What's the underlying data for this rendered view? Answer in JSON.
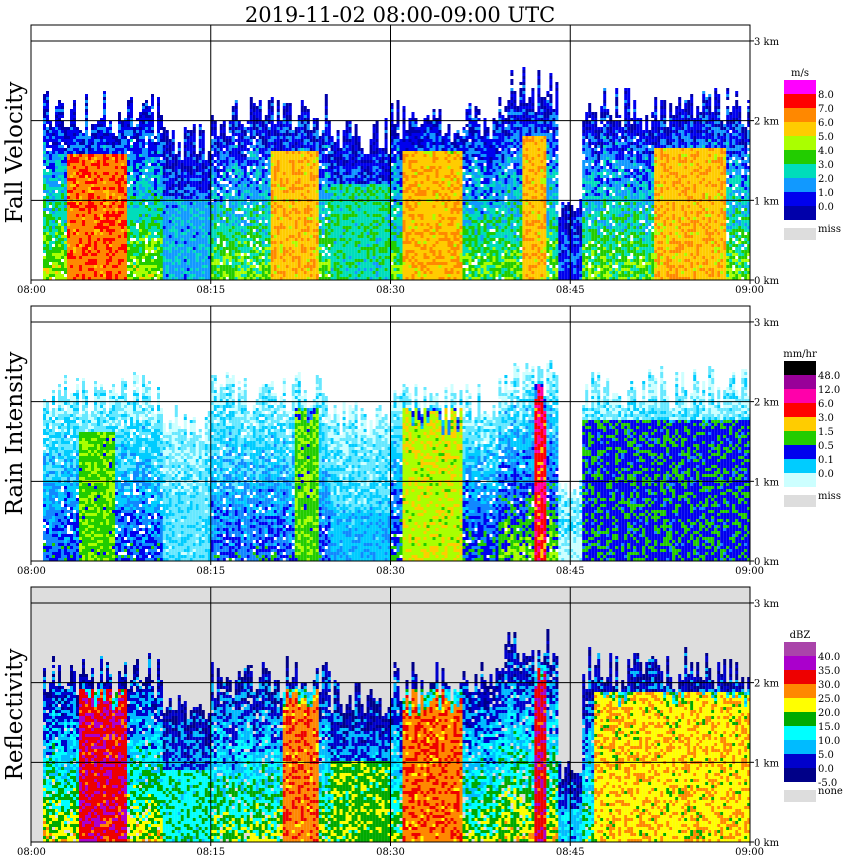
{
  "figure": {
    "title": "2019-11-02   08:00-09:00 UTC"
  },
  "chart_data": [
    {
      "type": "heatmap",
      "title": "Fall Velocity",
      "x_ticks": [
        "08:00",
        "08:15",
        "08:30",
        "08:45",
        "09:00"
      ],
      "y_ticks": [
        "0 km",
        "1 km",
        "2 km",
        "3 km"
      ],
      "xlim": [
        "08:00",
        "09:00"
      ],
      "ylim_km": [
        0,
        3.2
      ],
      "grid": true,
      "legend": {
        "unit": "m/s",
        "levels": [
          "8.0",
          "7.0",
          "6.0",
          "5.0",
          "4.0",
          "3.0",
          "2.0",
          "1.0",
          "0.0"
        ],
        "colors": [
          "#ff00ff",
          "#ff0000",
          "#ff8800",
          "#ffcc00",
          "#aaff00",
          "#22cc00",
          "#00ddbb",
          "#1199ff",
          "#0000ee",
          "#0000aa"
        ],
        "missing_label": "miss",
        "missing_color": "#dddddd"
      },
      "fill_ramp": [
        "#0000aa",
        "#0000ee",
        "#1199ff",
        "#00ddbb",
        "#22cc00",
        "#aaff00",
        "#ffcc00",
        "#ff8800",
        "#ff0000",
        "#ff0088"
      ],
      "background": "#ffffff",
      "echo_columns": [
        {
          "start": "08:01",
          "end": "08:11",
          "top_km": 2.3,
          "core_top_km": 1.55,
          "core_value": 8,
          "core_start": "08:03",
          "core_end": "08:08"
        },
        {
          "start": "08:11",
          "end": "08:15",
          "top_km": 1.9,
          "core_top_km": 1.0,
          "core_value": 3
        },
        {
          "start": "08:15",
          "end": "08:25",
          "top_km": 2.3,
          "core_top_km": 1.6,
          "core_value": 7,
          "core_start": "08:20",
          "core_end": "08:24"
        },
        {
          "start": "08:25",
          "end": "08:30",
          "top_km": 2.0,
          "core_top_km": 1.2,
          "core_value": 4
        },
        {
          "start": "08:30",
          "end": "08:39",
          "top_km": 2.2,
          "core_top_km": 1.6,
          "core_value": 7,
          "core_start": "08:31",
          "core_end": "08:36"
        },
        {
          "start": "08:39",
          "end": "08:44",
          "top_km": 2.6,
          "core_top_km": 1.8,
          "core_value": 7,
          "core_start": "08:41",
          "core_end": "08:43"
        },
        {
          "start": "08:44",
          "end": "08:46",
          "top_km": 1.0,
          "core_top_km": 0.5,
          "core_value": 2
        },
        {
          "start": "08:46",
          "end": "09:00",
          "top_km": 2.4,
          "core_top_km": 1.65,
          "core_value": 7,
          "core_start": "08:52",
          "core_end": "08:58"
        }
      ]
    },
    {
      "type": "heatmap",
      "title": "Rain Intensity",
      "x_ticks": [
        "08:00",
        "08:15",
        "08:30",
        "08:45",
        "09:00"
      ],
      "y_ticks": [
        "0 km",
        "1 km",
        "2 km",
        "3 km"
      ],
      "xlim": [
        "08:00",
        "09:00"
      ],
      "ylim_km": [
        0,
        3.2
      ],
      "grid": true,
      "legend": {
        "unit": "mm/hr",
        "levels": [
          "48.0",
          "12.0",
          "6.0",
          "3.0",
          "1.5",
          "0.5",
          "0.1",
          "0.0"
        ],
        "colors": [
          "#000000",
          "#990099",
          "#ff00aa",
          "#ff0000",
          "#ffcc00",
          "#22cc00",
          "#0000ee",
          "#00ccff",
          "#ccffff"
        ],
        "missing_label": "miss",
        "missing_color": "#dddddd"
      },
      "fill_ramp": [
        "#ccffff",
        "#66e8ff",
        "#00ccff",
        "#1188ff",
        "#0000ee",
        "#22cc00",
        "#aaff00",
        "#ffcc00",
        "#ff0000",
        "#ff00aa"
      ],
      "background": "#ffffff",
      "echo_columns": [
        {
          "start": "08:01",
          "end": "08:11",
          "top_km": 2.3,
          "core_top_km": 1.6,
          "core_value": 6,
          "core_start": "08:04",
          "core_end": "08:07"
        },
        {
          "start": "08:11",
          "end": "08:15",
          "top_km": 1.9,
          "core_top_km": 0.8,
          "core_value": 2
        },
        {
          "start": "08:15",
          "end": "08:25",
          "top_km": 2.3,
          "core_top_km": 1.9,
          "core_value": 6,
          "core_start": "08:22",
          "core_end": "08:24"
        },
        {
          "start": "08:25",
          "end": "08:30",
          "top_km": 2.0,
          "core_top_km": 0.6,
          "core_value": 3
        },
        {
          "start": "08:30",
          "end": "08:39",
          "top_km": 2.2,
          "core_top_km": 1.9,
          "core_value": 7,
          "core_start": "08:31",
          "core_end": "08:36"
        },
        {
          "start": "08:39",
          "end": "08:44",
          "top_km": 2.6,
          "core_top_km": 2.2,
          "core_value": 9,
          "core_start": "08:42",
          "core_end": "08:43"
        },
        {
          "start": "08:44",
          "end": "08:46",
          "top_km": 1.0,
          "core_top_km": 0.3,
          "core_value": 1
        },
        {
          "start": "08:46",
          "end": "09:00",
          "top_km": 2.4,
          "core_top_km": 1.75,
          "core_value": 5,
          "core_start": "08:46",
          "core_end": "09:00"
        }
      ]
    },
    {
      "type": "heatmap",
      "title": "Reflectivity",
      "x_ticks": [
        "08:00",
        "08:15",
        "08:30",
        "08:45",
        "09:00"
      ],
      "y_ticks": [
        "0 km",
        "1 km",
        "2 km",
        "3 km"
      ],
      "xlim": [
        "08:00",
        "09:00"
      ],
      "ylim_km": [
        0,
        3.2
      ],
      "grid": true,
      "legend": {
        "unit": "dBZ",
        "levels": [
          "40.0",
          "35.0",
          "30.0",
          "25.0",
          "20.0",
          "15.0",
          "10.0",
          "5.0",
          "0.0",
          "-5.0"
        ],
        "colors": [
          "#aa44aa",
          "#aa00cc",
          "#ee0000",
          "#ff8800",
          "#ffff00",
          "#00aa00",
          "#00ffff",
          "#00bbff",
          "#0000cc",
          "#000088"
        ],
        "missing_label": "none",
        "missing_color": "#dddddd"
      },
      "fill_ramp": [
        "#000088",
        "#0000cc",
        "#00bbff",
        "#00ffff",
        "#00aa00",
        "#ffff00",
        "#ff8800",
        "#ee0000",
        "#aa00cc",
        "#aa44aa"
      ],
      "background": "#dddddd",
      "echo_columns": [
        {
          "start": "08:01",
          "end": "08:11",
          "top_km": 2.3,
          "core_top_km": 1.9,
          "core_value": 8,
          "core_start": "08:04",
          "core_end": "08:08"
        },
        {
          "start": "08:11",
          "end": "08:15",
          "top_km": 1.9,
          "core_top_km": 0.9,
          "core_value": 4
        },
        {
          "start": "08:15",
          "end": "08:25",
          "top_km": 2.3,
          "core_top_km": 1.9,
          "core_value": 7,
          "core_start": "08:21",
          "core_end": "08:24"
        },
        {
          "start": "08:25",
          "end": "08:30",
          "top_km": 2.0,
          "core_top_km": 1.0,
          "core_value": 5
        },
        {
          "start": "08:30",
          "end": "08:39",
          "top_km": 2.2,
          "core_top_km": 1.9,
          "core_value": 7,
          "core_start": "08:31",
          "core_end": "08:36"
        },
        {
          "start": "08:39",
          "end": "08:44",
          "top_km": 2.6,
          "core_top_km": 2.2,
          "core_value": 8,
          "core_start": "08:42",
          "core_end": "08:43"
        },
        {
          "start": "08:44",
          "end": "08:46",
          "top_km": 1.0,
          "core_top_km": 0.4,
          "core_value": 3
        },
        {
          "start": "08:46",
          "end": "09:00",
          "top_km": 2.4,
          "core_top_km": 1.85,
          "core_value": 6,
          "core_start": "08:47",
          "core_end": "09:00"
        }
      ]
    }
  ]
}
